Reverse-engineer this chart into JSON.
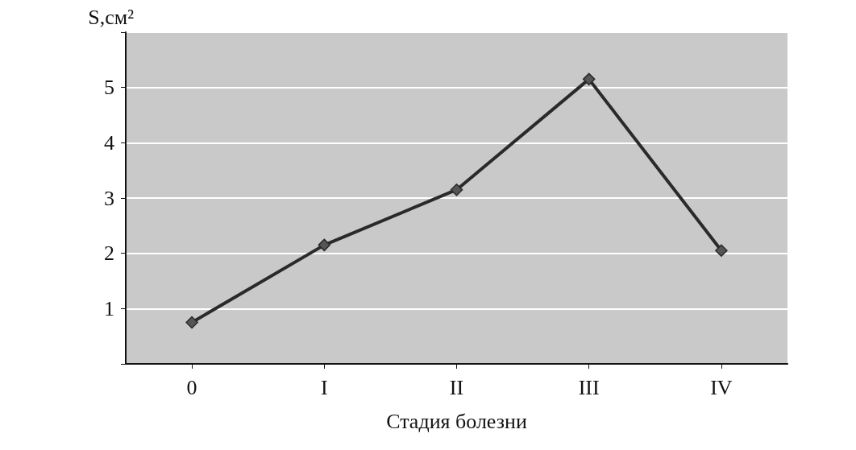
{
  "chart_data": {
    "type": "line",
    "xlabel": "Стадия болезни",
    "ylabel": "S,см²",
    "categories": [
      "0",
      "I",
      "II",
      "III",
      "IV"
    ],
    "series": [
      {
        "color": "#2a2a2a",
        "values": [
          0.75,
          2.15,
          3.15,
          5.15,
          2.05
        ]
      }
    ],
    "ylim": [
      0,
      6
    ],
    "yticks": [
      {
        "value": 0,
        "label": null
      },
      1,
      2,
      3,
      4,
      5,
      {
        "value": 6,
        "label": null
      }
    ],
    "grid": "y",
    "marker": "diamond",
    "line_style": "solid"
  }
}
